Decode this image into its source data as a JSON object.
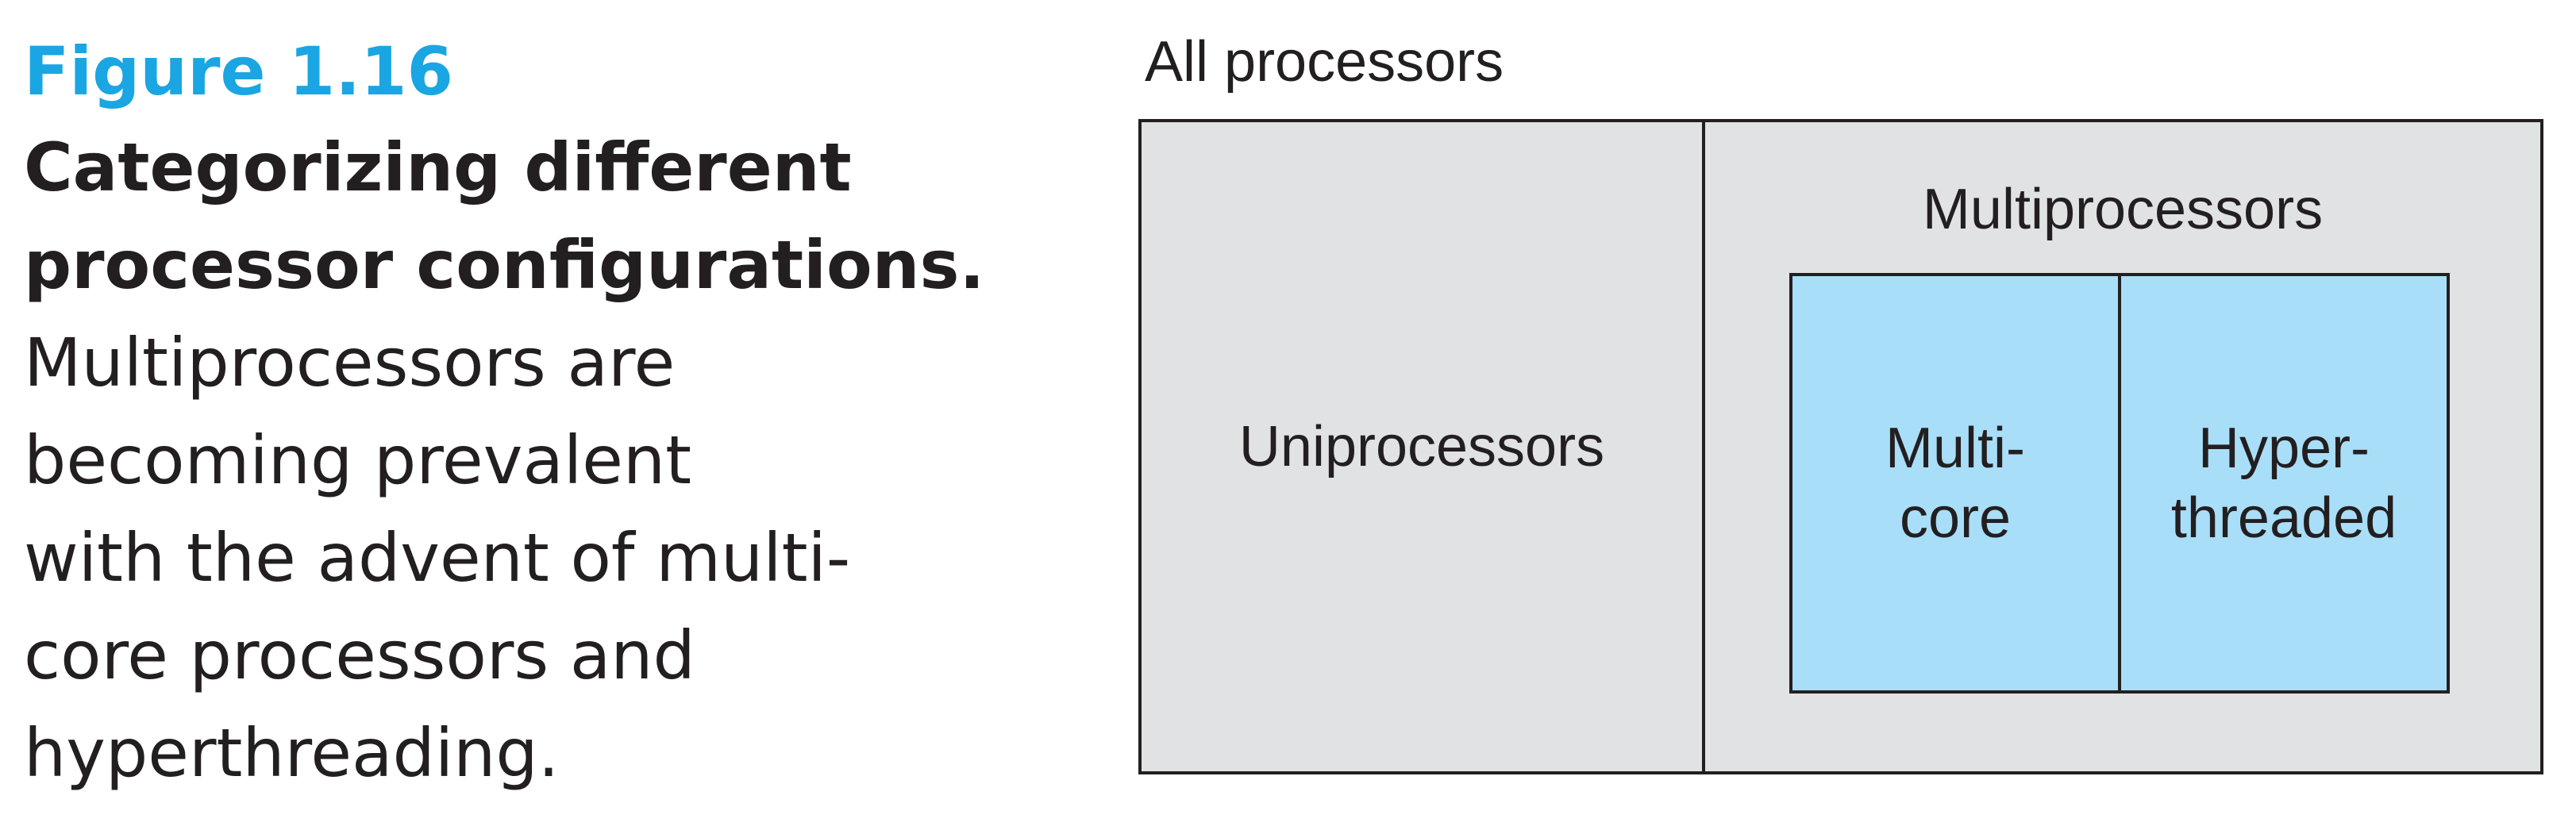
{
  "caption": {
    "figure_number": "Figure 1.16",
    "title_lines": [
      "Categorizing different",
      "processor configurations."
    ],
    "body_lines": [
      "Multiprocessors are",
      "becoming prevalent",
      "with the advent of multi-",
      "core processors and",
      "hyperthreading."
    ]
  },
  "diagram": {
    "outer_label": "All processors",
    "left_region_label": "Uniprocessors",
    "right_region_label": "Multiprocessors",
    "inner_cells": [
      {
        "lines": [
          "Multi-",
          "core"
        ]
      },
      {
        "lines": [
          "Hyper-",
          "threaded"
        ]
      }
    ],
    "colors": {
      "figure_number": "#1aa6e2",
      "outer_fill": "#e1e2e4",
      "inner_fill": "#a9def9",
      "stroke": "#231f20"
    }
  }
}
